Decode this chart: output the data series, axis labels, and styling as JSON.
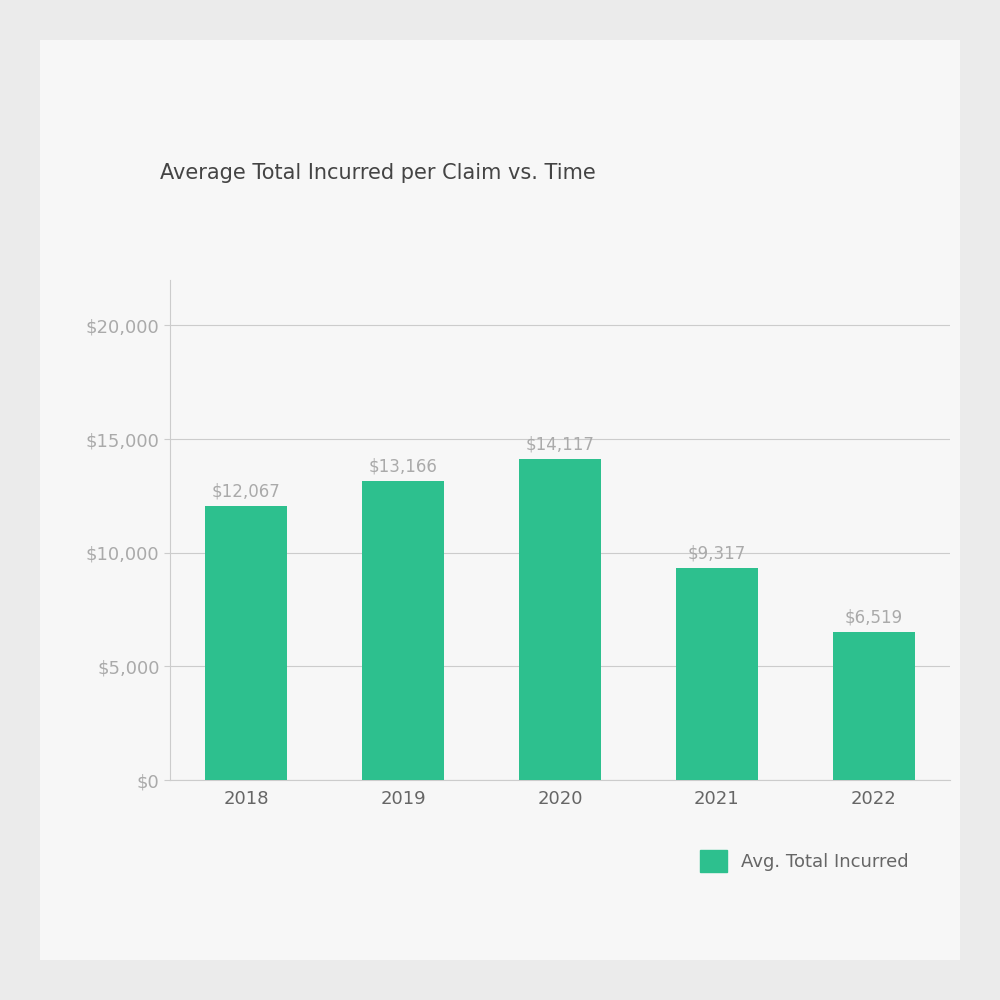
{
  "title": "Average Total Incurred per Claim vs. Time",
  "categories": [
    "2018",
    "2019",
    "2020",
    "2021",
    "2022"
  ],
  "values": [
    12067,
    13166,
    14117,
    9317,
    6519
  ],
  "bar_color": "#2DC08E",
  "label_color": "#aaaaaa",
  "title_color": "#444444",
  "outer_background": "#EBEBEB",
  "card_background": "#F7F7F7",
  "plot_background": "#F7F7F7",
  "yticks": [
    0,
    5000,
    10000,
    15000,
    20000
  ],
  "ylim": [
    0,
    22000
  ],
  "legend_label": "Avg. Total Incurred",
  "bar_labels": [
    "$12,067",
    "$13,166",
    "$14,117",
    "$9,317",
    "$6,519"
  ],
  "title_fontsize": 15,
  "tick_fontsize": 13,
  "label_fontsize": 12,
  "legend_fontsize": 13,
  "axis_color": "#cccccc",
  "tick_color": "#aaaaaa",
  "xticklabel_color": "#666666"
}
